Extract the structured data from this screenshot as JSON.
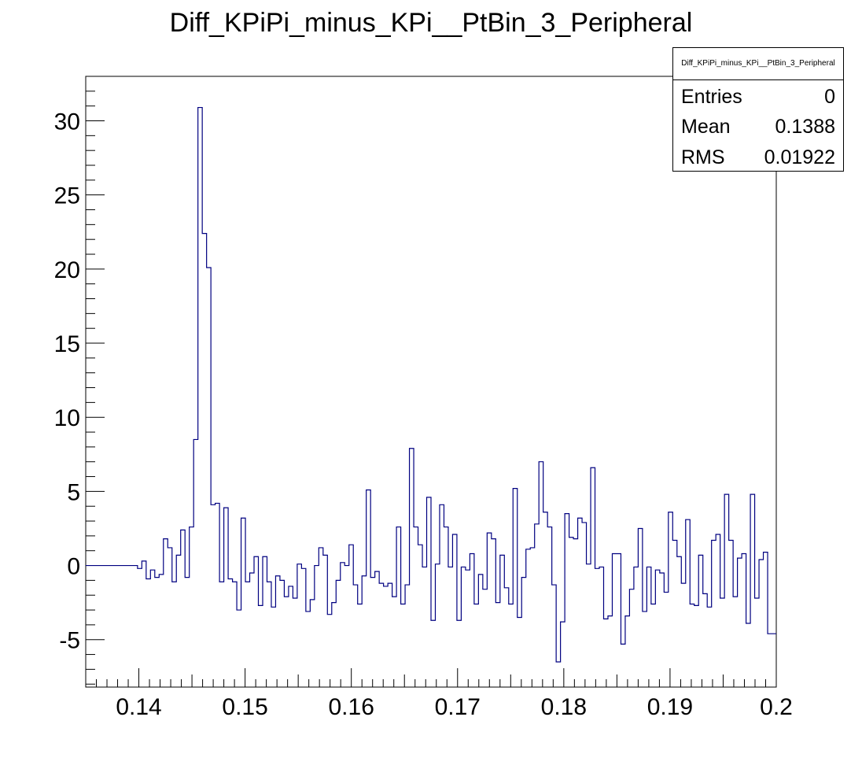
{
  "chart_data": {
    "type": "histogram-step",
    "title": "Diff_KPiPi_minus_KPi__PtBin_3_Peripheral",
    "xlim": [
      0.135,
      0.2
    ],
    "ylim": [
      -8.2,
      33
    ],
    "x_ticks": [
      0.14,
      0.15,
      0.16,
      0.17,
      0.18,
      0.19,
      0.2
    ],
    "x_tick_labels": [
      "0.14",
      "0.15",
      "0.16",
      "0.17",
      "0.18",
      "0.19",
      "0.2"
    ],
    "y_ticks": [
      -5,
      0,
      5,
      10,
      15,
      20,
      25,
      30
    ],
    "y_tick_labels": [
      "-5",
      "0",
      "5",
      "10",
      "15",
      "20",
      "25",
      "30"
    ],
    "line_color": "#000080",
    "bin_width": 0.0005,
    "x_start": 0.135,
    "values": [
      0,
      0,
      0,
      0,
      0,
      0,
      0,
      0,
      0,
      0,
      0,
      0,
      -0.2,
      0.3,
      -0.9,
      -0.3,
      -0.8,
      -0.6,
      1.8,
      1.2,
      -1.1,
      0.7,
      2.4,
      -0.8,
      2.6,
      8.5,
      30.9,
      22.4,
      20.1,
      4.1,
      4.2,
      -1.1,
      3.9,
      -0.9,
      -1.1,
      -3.0,
      3.2,
      -1.1,
      -0.5,
      0.6,
      -2.7,
      0.6,
      -1.1,
      -2.8,
      -0.7,
      -1.0,
      -2.1,
      -1.4,
      -2.2,
      0.1,
      -0.2,
      -3.1,
      -2.3,
      0.0,
      1.2,
      0.7,
      -3.3,
      -2.5,
      -1.0,
      0.2,
      0.0,
      1.4,
      -1.3,
      -2.6,
      -0.7,
      5.1,
      -0.8,
      -0.4,
      -1.2,
      -1.4,
      -1.2,
      -2.1,
      2.6,
      -2.6,
      -1.3,
      7.9,
      2.6,
      1.4,
      -0.1,
      4.6,
      -3.7,
      0.1,
      4.1,
      2.6,
      -0.1,
      2.1,
      -3.7,
      -0.1,
      -0.3,
      0.8,
      -2.6,
      -0.6,
      -1.6,
      2.2,
      1.8,
      -2.5,
      0.7,
      -1.5,
      -2.6,
      5.2,
      -3.5,
      -0.8,
      1.1,
      1.2,
      2.8,
      7.0,
      3.6,
      2.6,
      -1.3,
      -6.5,
      -3.8,
      3.5,
      1.9,
      1.8,
      3.2,
      2.9,
      0.1,
      6.6,
      -0.2,
      -0.1,
      -3.6,
      -3.4,
      0.8,
      0.8,
      -5.3,
      -3.4,
      -1.6,
      -0.1,
      2.5,
      -3.1,
      -0.1,
      -2.6,
      -0.3,
      -0.5,
      -1.8,
      3.6,
      1.7,
      0.6,
      -1.2,
      3.1,
      -2.6,
      -2.7,
      0.7,
      -1.9,
      -2.8,
      1.7,
      2.1,
      -2.2,
      4.8,
      1.7,
      -2.1,
      0.5,
      0.8,
      -3.9,
      4.8,
      -2.2,
      0.4,
      0.9,
      -4.6,
      -4.6
    ]
  },
  "stats": {
    "name": "Diff_KPiPi_minus_KPi__PtBin_3_Peripheral",
    "rows": [
      {
        "label": "Entries",
        "value": "0"
      },
      {
        "label": "Mean",
        "value": "0.1388"
      },
      {
        "label": "RMS",
        "value": "0.01922"
      }
    ]
  }
}
